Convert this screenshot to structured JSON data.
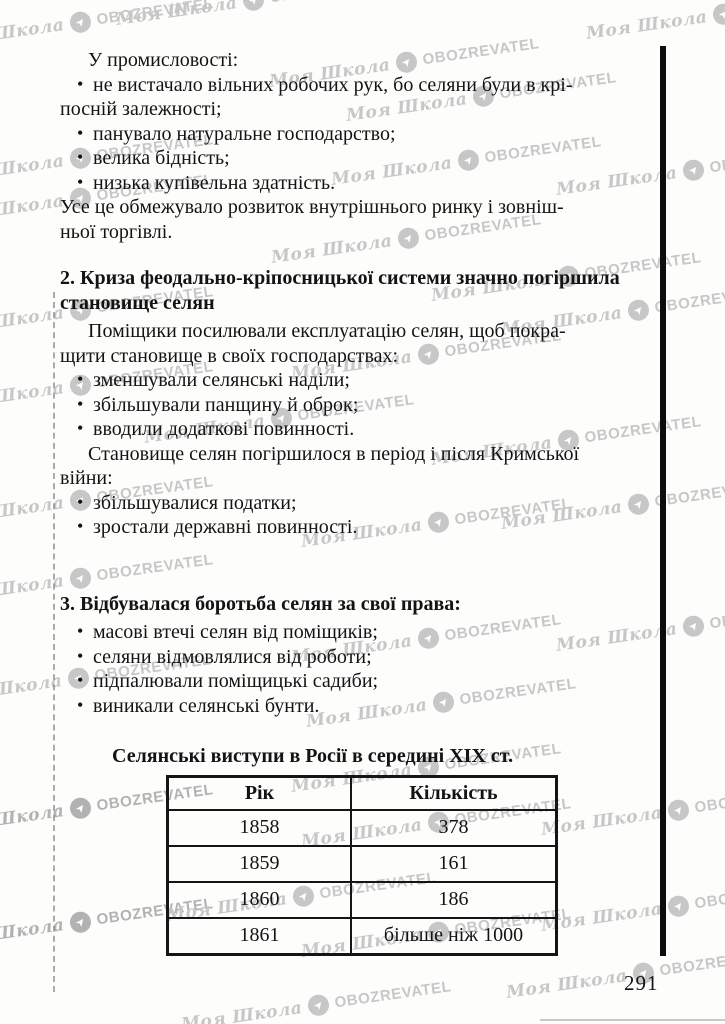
{
  "page": {
    "number": "291"
  },
  "watermark": {
    "brand_script": "Моя Школа",
    "brand_caps": "OBOZREVATEL",
    "icon": "obozrevatel-logo-icon",
    "icon_glyph": "➤",
    "color": "#c7c7c7"
  },
  "content": {
    "bullet_glyph": "•",
    "blocks": [
      {
        "type": "paragraph",
        "indent": true,
        "lines": [
          "У промисловості:"
        ]
      },
      {
        "type": "bullet-list",
        "items": [
          [
            "не вистачало вільних робочих рук, бо селяни були в крі-",
            "посній залежності;"
          ],
          [
            "панувало натуральне господарство;"
          ],
          [
            "велика бідність;"
          ],
          [
            "низька купівельна здатність."
          ]
        ]
      },
      {
        "type": "paragraph",
        "indent": false,
        "lines": [
          "Усе це обмежувало розвиток внутрішнього ринку і зовніш-",
          "ньої торгівлі."
        ]
      },
      {
        "type": "heading",
        "lines": [
          "2. Криза феодально-кріпосницької системи значно погіршила",
          "становище селян"
        ]
      },
      {
        "type": "paragraph",
        "indent": true,
        "lines": [
          "Поміщики посилювали експлуатацію селян, щоб покра-",
          "щити становище в своїх господарствах:"
        ]
      },
      {
        "type": "bullet-list",
        "items": [
          [
            "зменшували селянські наділи;"
          ],
          [
            "збільшували панщину й оброк;"
          ],
          [
            "вводили додаткові повинності."
          ]
        ]
      },
      {
        "type": "paragraph",
        "indent": true,
        "lines": [
          "Становище селян погіршилося в період і після Кримської",
          "війни:"
        ]
      },
      {
        "type": "bullet-list",
        "items": [
          [
            "збільшувалися податки;"
          ],
          [
            "зростали державні повинності."
          ]
        ]
      },
      {
        "type": "heading",
        "extra_space": true,
        "lines": [
          "3. Відбувалася боротьба селян за свої права:"
        ]
      },
      {
        "type": "bullet-list",
        "items": [
          [
            "масові втечі селян від поміщиків;"
          ],
          [
            "селяни відмовлялися від роботи;"
          ],
          [
            "підпалювали поміщицькі садиби;"
          ],
          [
            "виникали селянські бунти."
          ]
        ]
      },
      {
        "type": "table-title",
        "lines": [
          "Селянські виступи в Росії в середині XIX ст."
        ]
      },
      {
        "type": "table",
        "headers": [
          "Рік",
          "Кількість"
        ],
        "rows": [
          [
            "1858",
            "378"
          ],
          [
            "1859",
            "161"
          ],
          [
            "1860",
            "186"
          ],
          [
            "1861",
            "більше ніж 1000"
          ]
        ]
      }
    ]
  },
  "chart_data": {
    "type": "table",
    "title": "Селянські виступи в Росії в середині XIX ст.",
    "categories": [
      "1858",
      "1859",
      "1860",
      "1861"
    ],
    "values": [
      378,
      161,
      186,
      "більше ніж 1000"
    ],
    "xlabel": "Рік",
    "ylabel": "Кількість"
  }
}
